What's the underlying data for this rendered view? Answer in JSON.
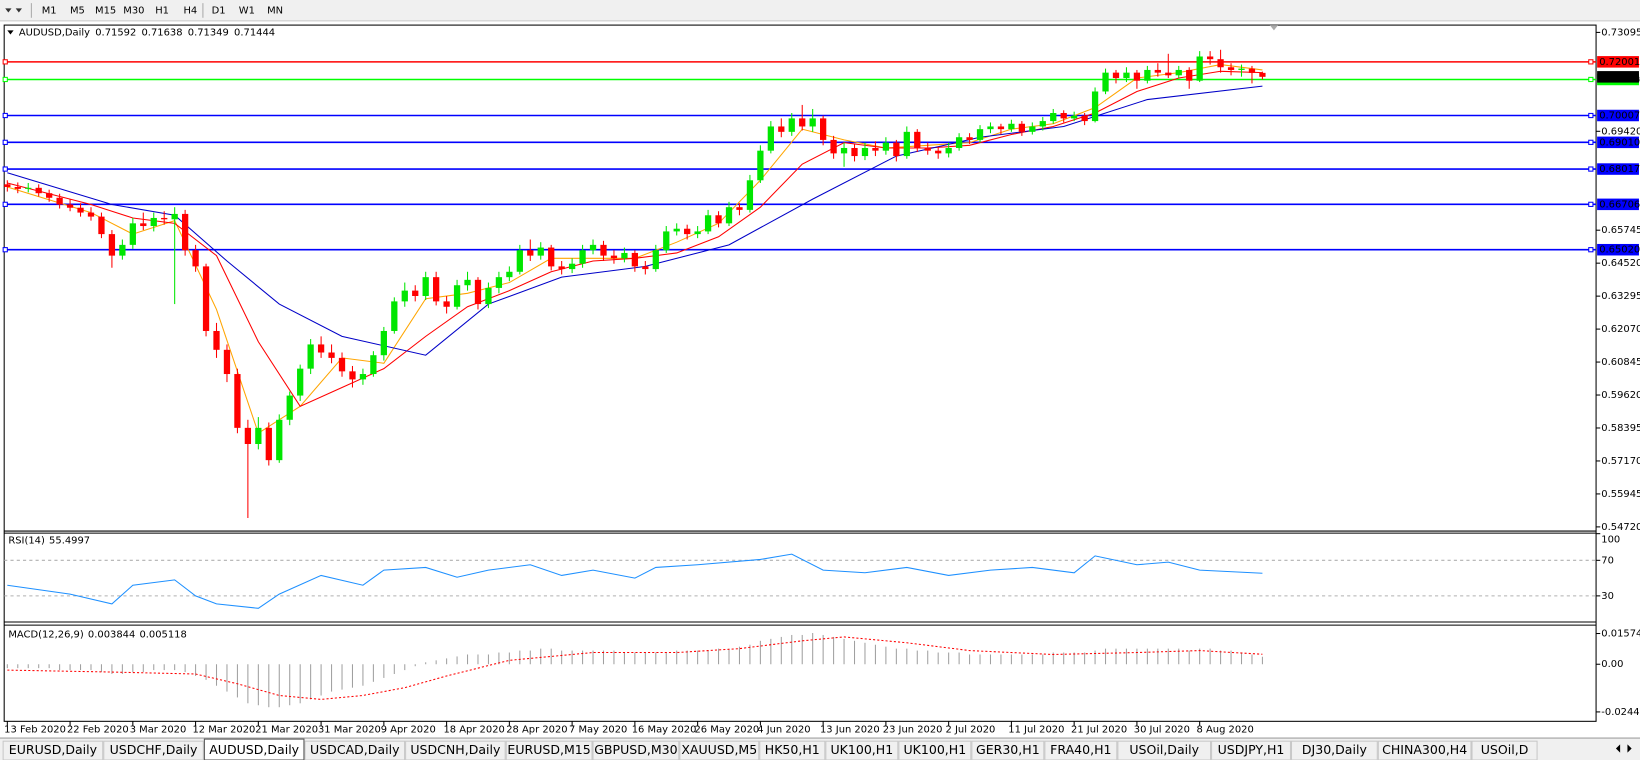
{
  "chart_data": {
    "type": "candlestick",
    "timeframes": [
      "M1",
      "M5",
      "M15",
      "M30",
      "H1",
      "H4",
      "D1",
      "W1",
      "MN"
    ],
    "symbol": "AUDUSD,Daily",
    "up_color": "#00e600",
    "down_color": "#ff0000",
    "ylim": [
      0.54565,
      0.73367
    ],
    "yticks": [
      {
        "value": 0.73095,
        "label": "0.73095"
      },
      {
        "value": 0.6942,
        "label": "0.69420"
      },
      {
        "value": 0.65745,
        "label": "0.65745"
      },
      {
        "value": 0.6452,
        "label": "0.64520"
      },
      {
        "value": 0.63295,
        "label": "0.63295"
      },
      {
        "value": 0.6207,
        "label": "0.62070"
      },
      {
        "value": 0.60845,
        "label": "0.60845"
      },
      {
        "value": 0.5962,
        "label": "0.59620"
      },
      {
        "value": 0.58395,
        "label": "0.58395"
      },
      {
        "value": 0.5717,
        "label": "0.57170"
      },
      {
        "value": 0.55945,
        "label": "0.55945"
      },
      {
        "value": 0.5472,
        "label": "0.54720"
      }
    ],
    "levels": [
      {
        "value": 0.72001,
        "label": "0.72001",
        "color": "#ff0000"
      },
      {
        "value": 0.71346,
        "label": "0.71346",
        "color": "#00ff00"
      },
      {
        "value": 0.70007,
        "label": "0.70007",
        "color": "#0000ff"
      },
      {
        "value": 0.6901,
        "label": "0.69010",
        "color": "#0000ff"
      },
      {
        "value": 0.68017,
        "label": "0.68017",
        "color": "#0000ff"
      },
      {
        "value": 0.66706,
        "label": "0.66706",
        "color": "#0000ff"
      },
      {
        "value": 0.6502,
        "label": "0.65020",
        "color": "#0000ff"
      }
    ],
    "ohlc": [
      [
        0.6745,
        0.676,
        0.6718,
        0.6735
      ],
      [
        0.6735,
        0.6752,
        0.6712,
        0.6728
      ],
      [
        0.6728,
        0.675,
        0.6715,
        0.6732
      ],
      [
        0.6732,
        0.6745,
        0.67,
        0.6712
      ],
      [
        0.6712,
        0.6725,
        0.668,
        0.6695
      ],
      [
        0.6695,
        0.671,
        0.6655,
        0.667
      ],
      [
        0.667,
        0.669,
        0.6645,
        0.6658
      ],
      [
        0.6658,
        0.6675,
        0.6625,
        0.664
      ],
      [
        0.664,
        0.666,
        0.661,
        0.6625
      ],
      [
        0.6625,
        0.664,
        0.6545,
        0.656
      ],
      [
        0.656,
        0.6575,
        0.6435,
        0.648
      ],
      [
        0.648,
        0.654,
        0.6465,
        0.652
      ],
      [
        0.652,
        0.662,
        0.6505,
        0.66
      ],
      [
        0.66,
        0.664,
        0.6575,
        0.659
      ],
      [
        0.659,
        0.664,
        0.657,
        0.662
      ],
      [
        0.662,
        0.6645,
        0.6595,
        0.6615
      ],
      [
        0.6615,
        0.666,
        0.63,
        0.6635
      ],
      [
        0.6635,
        0.665,
        0.648,
        0.65
      ],
      [
        0.65,
        0.652,
        0.642,
        0.644
      ],
      [
        0.644,
        0.645,
        0.618,
        0.62
      ],
      [
        0.62,
        0.623,
        0.61,
        0.613
      ],
      [
        0.613,
        0.615,
        0.601,
        0.604
      ],
      [
        0.604,
        0.606,
        0.582,
        0.584
      ],
      [
        0.584,
        0.587,
        0.5505,
        0.578
      ],
      [
        0.578,
        0.588,
        0.576,
        0.584
      ],
      [
        0.584,
        0.586,
        0.57,
        0.572
      ],
      [
        0.572,
        0.589,
        0.571,
        0.587
      ],
      [
        0.587,
        0.5975,
        0.585,
        0.596
      ],
      [
        0.596,
        0.6075,
        0.594,
        0.606
      ],
      [
        0.606,
        0.617,
        0.604,
        0.615
      ],
      [
        0.615,
        0.618,
        0.61,
        0.612
      ],
      [
        0.612,
        0.615,
        0.608,
        0.61
      ],
      [
        0.61,
        0.612,
        0.603,
        0.605
      ],
      [
        0.605,
        0.607,
        0.599,
        0.602
      ],
      [
        0.602,
        0.606,
        0.6,
        0.604
      ],
      [
        0.604,
        0.6125,
        0.603,
        0.611
      ],
      [
        0.611,
        0.6215,
        0.609,
        0.62
      ],
      [
        0.62,
        0.6325,
        0.619,
        0.631
      ],
      [
        0.631,
        0.638,
        0.629,
        0.635
      ],
      [
        0.635,
        0.637,
        0.631,
        0.633
      ],
      [
        0.633,
        0.642,
        0.6315,
        0.64
      ],
      [
        0.64,
        0.642,
        0.6295,
        0.631
      ],
      [
        0.631,
        0.633,
        0.6265,
        0.629
      ],
      [
        0.629,
        0.639,
        0.628,
        0.637
      ],
      [
        0.637,
        0.642,
        0.635,
        0.639
      ],
      [
        0.639,
        0.64,
        0.628,
        0.63
      ],
      [
        0.63,
        0.638,
        0.6285,
        0.636
      ],
      [
        0.636,
        0.642,
        0.634,
        0.64
      ],
      [
        0.64,
        0.644,
        0.6385,
        0.642
      ],
      [
        0.642,
        0.652,
        0.641,
        0.65
      ],
      [
        0.65,
        0.654,
        0.646,
        0.648
      ],
      [
        0.648,
        0.653,
        0.6465,
        0.651
      ],
      [
        0.651,
        0.652,
        0.6425,
        0.644
      ],
      [
        0.644,
        0.646,
        0.641,
        0.643
      ],
      [
        0.643,
        0.647,
        0.6415,
        0.645
      ],
      [
        0.645,
        0.652,
        0.6435,
        0.65
      ],
      [
        0.65,
        0.654,
        0.6485,
        0.652
      ],
      [
        0.652,
        0.6535,
        0.646,
        0.648
      ],
      [
        0.648,
        0.65,
        0.645,
        0.647
      ],
      [
        0.647,
        0.651,
        0.6455,
        0.649
      ],
      [
        0.649,
        0.65,
        0.642,
        0.644
      ],
      [
        0.644,
        0.646,
        0.641,
        0.643
      ],
      [
        0.643,
        0.652,
        0.642,
        0.65
      ],
      [
        0.65,
        0.659,
        0.649,
        0.657
      ],
      [
        0.657,
        0.66,
        0.6555,
        0.658
      ],
      [
        0.658,
        0.6595,
        0.654,
        0.656
      ],
      [
        0.656,
        0.659,
        0.6545,
        0.657
      ],
      [
        0.657,
        0.665,
        0.656,
        0.663
      ],
      [
        0.663,
        0.6645,
        0.6585,
        0.66
      ],
      [
        0.66,
        0.668,
        0.659,
        0.666
      ],
      [
        0.666,
        0.6675,
        0.663,
        0.665
      ],
      [
        0.665,
        0.678,
        0.664,
        0.676
      ],
      [
        0.676,
        0.689,
        0.675,
        0.687
      ],
      [
        0.687,
        0.698,
        0.686,
        0.696
      ],
      [
        0.696,
        0.699,
        0.692,
        0.694
      ],
      [
        0.694,
        0.701,
        0.6925,
        0.699
      ],
      [
        0.699,
        0.704,
        0.6945,
        0.696
      ],
      [
        0.696,
        0.7025,
        0.694,
        0.699
      ],
      [
        0.699,
        0.7,
        0.689,
        0.691
      ],
      [
        0.691,
        0.6925,
        0.684,
        0.686
      ],
      [
        0.686,
        0.69,
        0.681,
        0.688
      ],
      [
        0.688,
        0.6895,
        0.683,
        0.685
      ],
      [
        0.685,
        0.69,
        0.6835,
        0.688
      ],
      [
        0.688,
        0.6905,
        0.685,
        0.687
      ],
      [
        0.687,
        0.692,
        0.6855,
        0.69
      ],
      [
        0.69,
        0.691,
        0.683,
        0.685
      ],
      [
        0.685,
        0.696,
        0.684,
        0.694
      ],
      [
        0.694,
        0.695,
        0.6865,
        0.688
      ],
      [
        0.688,
        0.69,
        0.6855,
        0.687
      ],
      [
        0.687,
        0.6885,
        0.684,
        0.686
      ],
      [
        0.686,
        0.69,
        0.6845,
        0.688
      ],
      [
        0.688,
        0.6935,
        0.687,
        0.692
      ],
      [
        0.692,
        0.6935,
        0.6895,
        0.691
      ],
      [
        0.691,
        0.6965,
        0.69,
        0.695
      ],
      [
        0.695,
        0.6975,
        0.6935,
        0.696
      ],
      [
        0.696,
        0.697,
        0.693,
        0.695
      ],
      [
        0.695,
        0.6985,
        0.694,
        0.697
      ],
      [
        0.697,
        0.698,
        0.6925,
        0.694
      ],
      [
        0.694,
        0.6975,
        0.693,
        0.696
      ],
      [
        0.696,
        0.6995,
        0.6945,
        0.698
      ],
      [
        0.698,
        0.7025,
        0.697,
        0.701
      ],
      [
        0.701,
        0.702,
        0.6975,
        0.699
      ],
      [
        0.699,
        0.7015,
        0.698,
        0.7
      ],
      [
        0.7,
        0.701,
        0.6965,
        0.698
      ],
      [
        0.698,
        0.7105,
        0.6975,
        0.709
      ],
      [
        0.709,
        0.7175,
        0.708,
        0.716
      ],
      [
        0.716,
        0.717,
        0.712,
        0.714
      ],
      [
        0.714,
        0.718,
        0.7125,
        0.716
      ],
      [
        0.716,
        0.717,
        0.71,
        0.713
      ],
      [
        0.713,
        0.7185,
        0.712,
        0.717
      ],
      [
        0.717,
        0.7195,
        0.7145,
        0.716
      ],
      [
        0.716,
        0.723,
        0.714,
        0.715
      ],
      [
        0.715,
        0.7185,
        0.714,
        0.717
      ],
      [
        0.717,
        0.718,
        0.71,
        0.713
      ],
      [
        0.713,
        0.724,
        0.7125,
        0.722
      ],
      [
        0.722,
        0.724,
        0.719,
        0.721
      ],
      [
        0.721,
        0.7245,
        0.716,
        0.718
      ],
      [
        0.718,
        0.7195,
        0.715,
        0.717
      ],
      [
        0.717,
        0.719,
        0.7145,
        0.7175
      ],
      [
        0.7175,
        0.7185,
        0.712,
        0.7159
      ],
      [
        0.71592,
        0.71638,
        0.71349,
        0.71444
      ]
    ],
    "moving_averages": [
      {
        "color": "#ffa500",
        "x": [
          0,
          8,
          12,
          16,
          20,
          24,
          28,
          32,
          36,
          40,
          44,
          48,
          52,
          56,
          60,
          64,
          68,
          72,
          76,
          80,
          84,
          88,
          92,
          96,
          100,
          104,
          108,
          112,
          116,
          120
        ],
        "values": [
          0.6735,
          0.664,
          0.656,
          0.661,
          0.628,
          0.582,
          0.592,
          0.61,
          0.608,
          0.632,
          0.634,
          0.638,
          0.647,
          0.647,
          0.647,
          0.653,
          0.66,
          0.676,
          0.695,
          0.691,
          0.688,
          0.689,
          0.69,
          0.695,
          0.697,
          0.703,
          0.714,
          0.716,
          0.719,
          0.717
        ]
      },
      {
        "color": "#ff0000",
        "x": [
          0,
          8,
          12,
          16,
          20,
          24,
          28,
          32,
          36,
          40,
          44,
          48,
          52,
          56,
          60,
          64,
          68,
          72,
          76,
          80,
          84,
          88,
          92,
          96,
          100,
          104,
          108,
          112,
          116,
          120
        ],
        "values": [
          0.675,
          0.667,
          0.662,
          0.66,
          0.648,
          0.616,
          0.592,
          0.599,
          0.606,
          0.618,
          0.629,
          0.635,
          0.642,
          0.646,
          0.647,
          0.649,
          0.655,
          0.666,
          0.682,
          0.69,
          0.688,
          0.688,
          0.689,
          0.693,
          0.696,
          0.701,
          0.709,
          0.714,
          0.7165,
          0.716
        ]
      },
      {
        "color": "#0000c8",
        "x": [
          0,
          10,
          16,
          21,
          26,
          32,
          40,
          46,
          53,
          61,
          69,
          77,
          85,
          93,
          101,
          109,
          120
        ],
        "values": [
          0.6788,
          0.667,
          0.663,
          0.646,
          0.63,
          0.618,
          0.611,
          0.63,
          0.64,
          0.644,
          0.652,
          0.669,
          0.685,
          0.692,
          0.696,
          0.706,
          0.711
        ]
      }
    ],
    "xticks": [
      {
        "value": 0,
        "label": "13 Feb 2020"
      },
      {
        "value": 6,
        "label": "22 Feb 2020"
      },
      {
        "value": 12,
        "label": "3 Mar 2020"
      },
      {
        "value": 18,
        "label": "12 Mar 2020"
      },
      {
        "value": 24,
        "label": "21 Mar 2020"
      },
      {
        "value": 30,
        "label": "31 Mar 2020"
      },
      {
        "value": 36,
        "label": "9 Apr 2020"
      },
      {
        "value": 42,
        "label": "18 Apr 2020"
      },
      {
        "value": 48,
        "label": "28 Apr 2020"
      },
      {
        "value": 54,
        "label": "7 May 2020"
      },
      {
        "value": 60,
        "label": "16 May 2020"
      },
      {
        "value": 66,
        "label": "26 May 2020"
      },
      {
        "value": 72,
        "label": "4 Jun 2020"
      },
      {
        "value": 78,
        "label": "13 Jun 2020"
      },
      {
        "value": 84,
        "label": "23 Jun 2020"
      },
      {
        "value": 90,
        "label": "2 Jul 2020"
      },
      {
        "value": 96,
        "label": "11 Jul 2020"
      },
      {
        "value": 102,
        "label": "21 Jul 2020"
      },
      {
        "value": 108,
        "label": "30 Jul 2020"
      },
      {
        "value": 114,
        "label": "8 Aug 2020"
      }
    ],
    "rsi": {
      "title": "RSI(14)",
      "color": "#1e90ff",
      "ylim": [
        0,
        100
      ],
      "yticks": [
        30,
        70,
        100
      ],
      "x": [
        0,
        6,
        10,
        12,
        16,
        18,
        20,
        24,
        26,
        30,
        34,
        36,
        40,
        43,
        46,
        50,
        53,
        56,
        60,
        62,
        66,
        72,
        75,
        78,
        82,
        86,
        90,
        94,
        98,
        102,
        104,
        108,
        111,
        114,
        120
      ],
      "values": [
        42,
        32,
        21,
        42,
        48,
        30,
        21,
        16,
        32,
        53,
        42,
        59,
        62,
        51,
        59,
        65,
        53,
        59,
        50,
        62,
        65,
        71,
        77,
        59,
        56,
        62,
        53,
        59,
        62,
        56,
        75,
        65,
        68,
        59,
        55.4997
      ]
    },
    "macd": {
      "title": "MACD(12,26,9)",
      "ylim": [
        -0.024412,
        0.015741
      ],
      "yticks": [
        0.015741,
        {
          "value": 0,
          "label": "0.00"
        },
        -0.024412
      ],
      "histogram": {
        "color": "#a0a0a0",
        "values": [
          -0.002,
          -0.002,
          -0.002,
          -0.002,
          -0.002,
          -0.003,
          -0.003,
          -0.003,
          -0.003,
          -0.004,
          -0.005,
          -0.005,
          -0.004,
          -0.004,
          -0.003,
          -0.003,
          -0.003,
          -0.004,
          -0.006,
          -0.008,
          -0.011,
          -0.014,
          -0.017,
          -0.02,
          -0.021,
          -0.022,
          -0.022,
          -0.021,
          -0.02,
          -0.018,
          -0.016,
          -0.014,
          -0.013,
          -0.012,
          -0.011,
          -0.009,
          -0.007,
          -0.005,
          -0.003,
          -0.001,
          0.001,
          0.002,
          0.003,
          0.004,
          0.005,
          0.005,
          0.005,
          0.006,
          0.006,
          0.007,
          0.007,
          0.008,
          0.008,
          0.007,
          0.007,
          0.007,
          0.007,
          0.007,
          0.007,
          0.006,
          0.006,
          0.006,
          0.006,
          0.006,
          0.007,
          0.007,
          0.007,
          0.007,
          0.008,
          0.008,
          0.009,
          0.01,
          0.012,
          0.013,
          0.014,
          0.015,
          0.015,
          0.016,
          0.015,
          0.014,
          0.013,
          0.012,
          0.011,
          0.01,
          0.009,
          0.008,
          0.008,
          0.007,
          0.007,
          0.006,
          0.006,
          0.006,
          0.005,
          0.005,
          0.005,
          0.005,
          0.005,
          0.005,
          0.005,
          0.005,
          0.006,
          0.006,
          0.006,
          0.006,
          0.007,
          0.008,
          0.008,
          0.008,
          0.008,
          0.008,
          0.008,
          0.008,
          0.008,
          0.007,
          0.008,
          0.008,
          0.007,
          0.007,
          0.006,
          0.005,
          0.003844
        ]
      },
      "signal": {
        "color": "#ff0000",
        "x": [
          0,
          10,
          18,
          22,
          26,
          30,
          34,
          38,
          42,
          48,
          56,
          64,
          70,
          76,
          80,
          86,
          92,
          100,
          108,
          114,
          120
        ],
        "values": [
          -0.003,
          -0.004,
          -0.005,
          -0.01,
          -0.016,
          -0.018,
          -0.016,
          -0.012,
          -0.006,
          0.002,
          0.006,
          0.006,
          0.008,
          0.012,
          0.014,
          0.011,
          0.007,
          0.005,
          0.006,
          0.007,
          0.005118
        ]
      }
    },
    "tabs": [
      "EURUSD,Daily",
      "USDCHF,Daily",
      "AUDUSD,Daily",
      "USDCAD,Daily",
      "USDCNH,Daily",
      "EURUSD,M15",
      "GBPUSD,M30",
      "XAUUSD,M5",
      "HK50,H1",
      "UK100,H1",
      "UK100,H1",
      "GER30,H1",
      "FRA40,H1",
      "USOil,Daily",
      "USDJPY,H1",
      "DJ30,Daily",
      "CHINA300,H4",
      "USOil,D"
    ]
  }
}
